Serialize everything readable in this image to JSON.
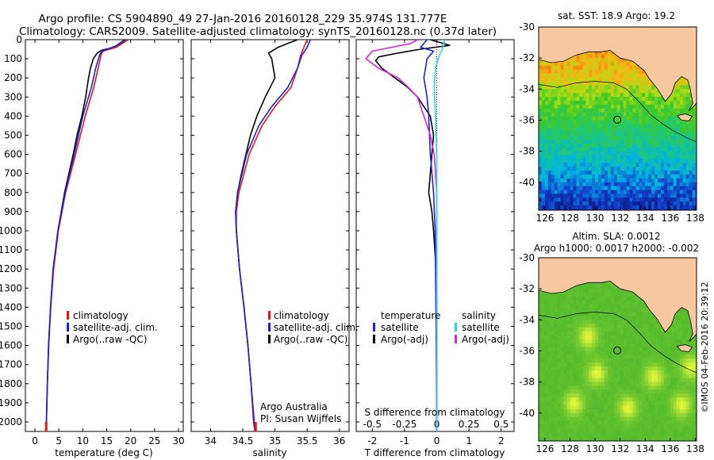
{
  "header": {
    "line1": "Argo profile: CS 5904890_49 27-Jan-2016 20160128_229 35.974S 131.777E",
    "line2": "Climatology: CARS2009. Satellite-adjusted climatology: synTS_20160128.nc (0.37d later)"
  },
  "colors": {
    "climatology": "#e8141c",
    "satellite": "#1a23d6",
    "argo": "#000000",
    "sat_salinity": "#20d8e8",
    "argo_salinity": "#e020e0",
    "land": "#f7c8a0"
  },
  "chart_data": [
    {
      "type": "line",
      "name": "temperature-panel",
      "xlabel": "temperature (deg C)",
      "ylabel": "",
      "xlim": [
        -2,
        31
      ],
      "ylim": [
        2050,
        0
      ],
      "xticks": [
        "0",
        "5",
        "10",
        "15",
        "20",
        "25",
        "30"
      ],
      "yticks": [
        "0",
        "100",
        "200",
        "300",
        "400",
        "500",
        "600",
        "700",
        "800",
        "900",
        "1000",
        "1100",
        "1200",
        "1300",
        "1400",
        "1500",
        "1600",
        "1700",
        "1800",
        "1900",
        "2000"
      ],
      "legend": [
        "climatology",
        "satellite-adj. clim.",
        "Argo(..raw -QC)"
      ],
      "series": [
        {
          "name": "climatology",
          "depth": [
            0,
            40,
            60,
            80,
            150,
            250,
            400,
            600,
            800,
            1000,
            1200,
            1400,
            1600,
            1800,
            2000,
            2050
          ],
          "values": [
            19.5,
            17.0,
            14.2,
            13.8,
            13.2,
            12.3,
            10.5,
            8.5,
            6.4,
            4.9,
            3.9,
            3.3,
            2.9,
            2.6,
            2.4,
            2.35
          ]
        },
        {
          "name": "satellite-adj. clim.",
          "depth": [
            0,
            30,
            60,
            80,
            150,
            250,
            400,
            600,
            800,
            1000,
            1200,
            1400,
            1600,
            1800,
            2000,
            2050
          ],
          "values": [
            19.0,
            17.2,
            14.0,
            13.5,
            12.7,
            11.8,
            10.0,
            8.2,
            6.3,
            4.8,
            3.8,
            3.25,
            2.85,
            2.6,
            2.4,
            2.3
          ]
        },
        {
          "name": "Argo(..raw -QC)",
          "depth": [
            0,
            40,
            55,
            70,
            100,
            150,
            200,
            300,
            400,
            500,
            600,
            800,
            1000,
            1200,
            1400,
            1600,
            1800,
            2000,
            2050
          ],
          "values": [
            18.8,
            16.5,
            14.0,
            13.0,
            12.2,
            11.6,
            11.2,
            10.6,
            9.8,
            8.8,
            8.0,
            6.2,
            4.8,
            3.8,
            3.25,
            2.85,
            2.6,
            2.4,
            2.3
          ]
        }
      ]
    },
    {
      "type": "line",
      "name": "salinity-panel",
      "xlabel": "salinity",
      "xlim": [
        33.7,
        36.15
      ],
      "ylim": [
        2050,
        0
      ],
      "xticks": [
        "34",
        "34.5",
        "35",
        "35.5",
        "36"
      ],
      "legend": [
        "climatology",
        "satellite-adj. clim.",
        "Argo(..raw -QC)"
      ],
      "annotation": [
        "Argo Australia",
        "PI: Susan Wijffels"
      ],
      "series": [
        {
          "name": "climatology",
          "depth": [
            0,
            40,
            80,
            150,
            250,
            350,
            450,
            600,
            800,
            900,
            1000,
            1200,
            1400,
            1600,
            1800,
            2000,
            2050
          ],
          "values": [
            35.5,
            35.45,
            35.4,
            35.35,
            35.25,
            35.0,
            34.8,
            34.6,
            34.44,
            34.4,
            34.4,
            34.45,
            34.52,
            34.58,
            34.63,
            34.68,
            34.7
          ]
        },
        {
          "name": "satellite-adj. clim.",
          "depth": [
            0,
            40,
            80,
            150,
            250,
            350,
            450,
            600,
            800,
            900,
            1000,
            1200,
            1400,
            1600,
            1800,
            2000,
            2050
          ],
          "values": [
            35.55,
            35.5,
            35.42,
            35.35,
            35.2,
            34.95,
            34.75,
            34.56,
            34.42,
            34.39,
            34.4,
            34.45,
            34.52,
            34.58,
            34.63,
            34.67,
            34.69
          ]
        },
        {
          "name": "Argo(..raw -QC)",
          "depth": [
            0,
            20,
            40,
            70,
            100,
            200,
            300,
            400,
            500,
            600,
            700,
            800,
            900,
            1000,
            1200,
            1400,
            1600,
            1800,
            2000,
            2050
          ],
          "values": [
            35.35,
            35.2,
            35.05,
            34.9,
            34.95,
            35.0,
            34.85,
            34.72,
            34.62,
            34.55,
            34.48,
            34.42,
            34.39,
            34.4,
            34.45,
            34.52,
            34.58,
            34.63,
            34.67,
            34.69
          ]
        }
      ]
    },
    {
      "type": "line",
      "name": "difference-panel",
      "xlabel": "T difference from climatology",
      "xlabel2": "S difference from climatology",
      "xlim": [
        -2.5,
        2.4
      ],
      "ylim": [
        2050,
        0
      ],
      "xticks": [
        "-2",
        "-1",
        "0",
        "1",
        "2"
      ],
      "xticks2": [
        "-0.5",
        "-0.25",
        "0",
        "0.25",
        "0.5"
      ],
      "legend_temperature_title": "temperature",
      "legend_salinity_title": "salinity",
      "legend": [
        "satellite",
        "Argo(-adj)",
        "satellite",
        "Argo(-adj)"
      ],
      "series": [
        {
          "name": "temperature satellite",
          "depth": [
            0,
            40,
            60,
            100,
            200,
            300,
            400,
            600,
            800,
            1000,
            1500,
            2050
          ],
          "values": [
            -0.3,
            -0.5,
            -0.1,
            -0.3,
            -0.4,
            -0.3,
            -0.25,
            -0.2,
            -0.1,
            -0.05,
            -0.02,
            0
          ]
        },
        {
          "name": "temperature Argo(-adj)",
          "depth": [
            0,
            30,
            50,
            70,
            90,
            110,
            150,
            200,
            250,
            300,
            400,
            500,
            600,
            700,
            800,
            900,
            1000,
            1200,
            1400,
            2050
          ],
          "values": [
            -0.2,
            0.4,
            -0.5,
            -1.2,
            -1.8,
            -1.9,
            -1.7,
            -1.3,
            -0.9,
            -0.6,
            -0.2,
            -0.1,
            -0.15,
            -0.2,
            -0.25,
            -0.15,
            -0.1,
            -0.02,
            0,
            0
          ]
        },
        {
          "name": "salinity satellite",
          "depth": [
            0,
            40,
            80,
            150,
            250,
            400,
            600,
            800,
            1000,
            2050
          ],
          "values": [
            0.06,
            0.05,
            0.02,
            -0.01,
            -0.02,
            -0.01,
            0,
            0,
            0,
            0
          ]
        },
        {
          "name": "salinity Argo(-adj)",
          "depth": [
            0,
            20,
            60,
            100,
            150,
            200,
            250,
            300,
            400,
            500,
            600,
            800,
            1000,
            2050
          ],
          "values": [
            -0.15,
            -0.2,
            -0.5,
            -0.55,
            -0.45,
            -0.3,
            -0.22,
            -0.15,
            -0.1,
            -0.05,
            -0.02,
            0,
            0,
            0
          ]
        }
      ]
    },
    {
      "type": "heatmap",
      "name": "sst-map",
      "title": "sat. SST: 18.9 Argo: 19.2",
      "xlim": [
        125.5,
        138.1
      ],
      "ylim": [
        -41.8,
        -30
      ],
      "xticks": [
        "126",
        "128",
        "130",
        "132",
        "134",
        "136",
        "138"
      ],
      "yticks": [
        "-30",
        "-32",
        "-34",
        "-36",
        "-38",
        "-40"
      ],
      "marker": {
        "lon": 131.777,
        "lat": -35.974
      }
    },
    {
      "type": "heatmap",
      "name": "sla-map",
      "title": "Altim. SLA: 0.0012",
      "subtitle": "Argo h1000: 0.0017 h2000: -0.002",
      "xlim": [
        125.5,
        138.1
      ],
      "ylim": [
        -41.8,
        -30
      ],
      "xticks": [
        "126",
        "128",
        "130",
        "132",
        "134",
        "136",
        "138"
      ],
      "yticks": [
        "-30",
        "-32",
        "-34",
        "-36",
        "-38",
        "-40"
      ],
      "marker": {
        "lon": 131.777,
        "lat": -35.974
      }
    }
  ],
  "footer": {
    "credit": "©IMOS 04-Feb-2016 20:39:12"
  }
}
